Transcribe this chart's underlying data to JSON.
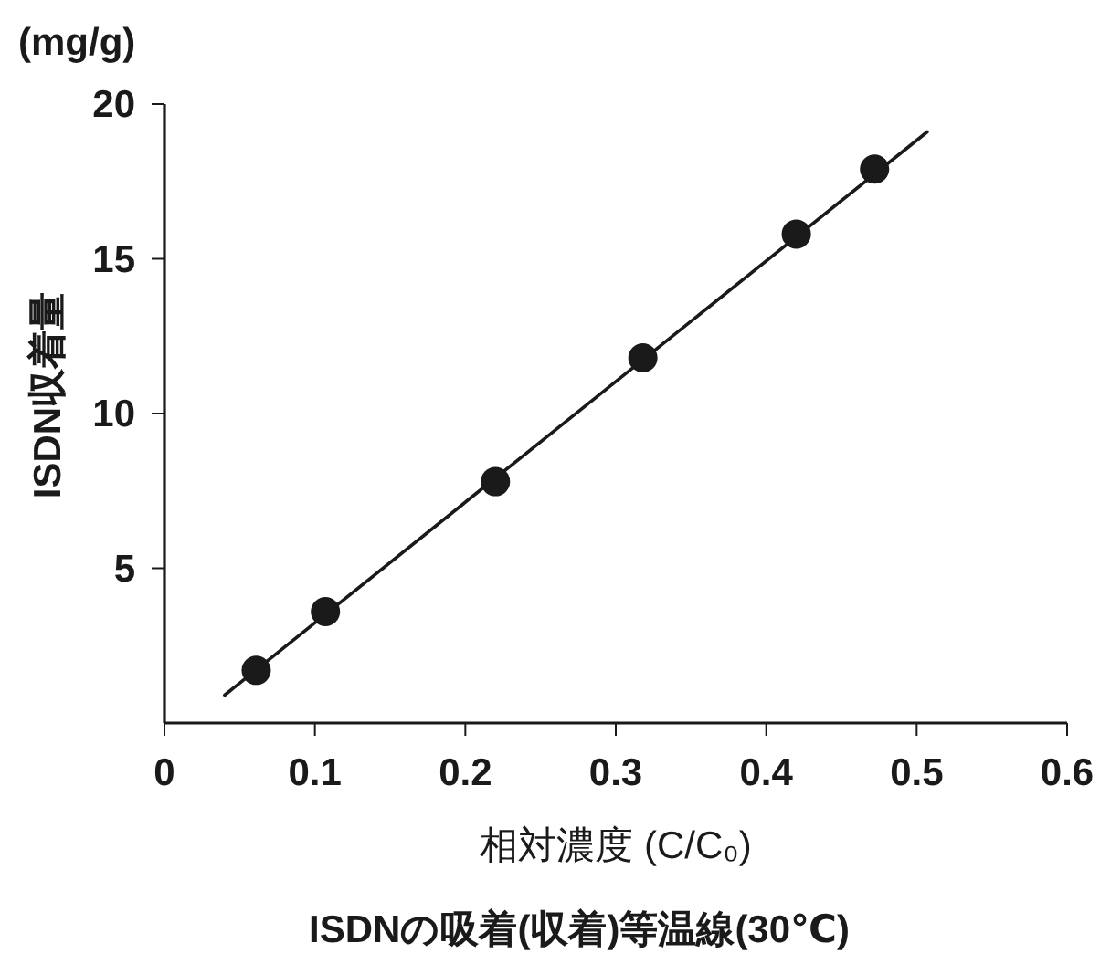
{
  "chart_data": {
    "type": "scatter",
    "title": "ISDNの吸着(収着)等温線(30℃)",
    "xlabel": "相対濃度 (C/C₀)",
    "ylabel": "ISDN収着量",
    "annotations": [
      "(mg/g)"
    ],
    "xlim": [
      0,
      0.6
    ],
    "xticks": [
      0,
      0.1,
      0.2,
      0.3,
      0.4,
      0.5,
      0.6
    ],
    "ylim": [
      0,
      20
    ],
    "yticks": [
      5,
      10,
      15,
      20
    ],
    "grid": false,
    "marker": "circle",
    "series": [
      {
        "color": "#1a1a1a",
        "x": [
          0.061,
          0.107,
          0.22,
          0.318,
          0.42,
          0.472
        ],
        "values": [
          1.7,
          3.6,
          7.8,
          11.8,
          15.8,
          17.9
        ]
      },
      {
        "type": "line",
        "color": "#1a1a1a",
        "line_style": "solid",
        "marker": "none",
        "x": [
          0.04,
          0.507
        ],
        "values": [
          0.9,
          19.1
        ]
      }
    ]
  }
}
